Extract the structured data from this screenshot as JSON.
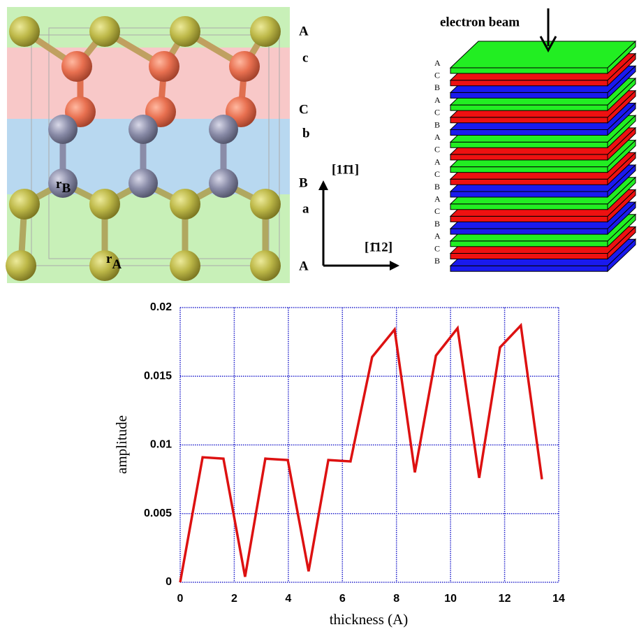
{
  "structure": {
    "layer_labels": [
      "A",
      "c",
      "C",
      "b",
      "B",
      "a",
      "A"
    ],
    "r_B": {
      "main": "r",
      "sub": "B"
    },
    "r_A": {
      "main": "r",
      "sub": "A"
    },
    "dir_up": "[11̄1]",
    "dir_right": "[1̄12]"
  },
  "stacking": {
    "beam_label": "electron beam",
    "layers": [
      {
        "label": "A",
        "color": "#22ee22"
      },
      {
        "label": "C",
        "color": "#ee1111"
      },
      {
        "label": "B",
        "color": "#1a1aee"
      },
      {
        "label": "A",
        "color": "#22ee22"
      },
      {
        "label": "C",
        "color": "#ee1111"
      },
      {
        "label": "B",
        "color": "#1a1aee"
      },
      {
        "label": "A",
        "color": "#22ee22"
      },
      {
        "label": "C",
        "color": "#ee1111"
      },
      {
        "label": "A",
        "color": "#22ee22"
      },
      {
        "label": "C",
        "color": "#ee1111"
      },
      {
        "label": "B",
        "color": "#1a1aee"
      },
      {
        "label": "A",
        "color": "#22ee22"
      },
      {
        "label": "C",
        "color": "#ee1111"
      },
      {
        "label": "B",
        "color": "#1a1aee"
      },
      {
        "label": "A",
        "color": "#22ee22"
      },
      {
        "label": "C",
        "color": "#ee1111"
      },
      {
        "label": "B",
        "color": "#1a1aee"
      }
    ]
  },
  "chart_data": {
    "type": "line",
    "x_label": "thickness (A)",
    "y_label": "amplitude",
    "x": [
      0,
      0.83,
      1.6,
      2.4,
      3.15,
      3.98,
      4.75,
      5.48,
      6.3,
      7.1,
      7.93,
      8.68,
      9.46,
      10.26,
      11.06,
      11.83,
      12.6,
      13.38
    ],
    "values": [
      0,
      0.0091,
      0.009,
      0.0004,
      0.009,
      0.0089,
      0.0008,
      0.0089,
      0.0088,
      0.0164,
      0.0184,
      0.008,
      0.0165,
      0.0185,
      0.0076,
      0.0171,
      0.0187,
      0.0075
    ],
    "color": "#dd1111",
    "xlim": [
      0,
      14
    ],
    "xticks": [
      0,
      2,
      4,
      6,
      8,
      10,
      12,
      14
    ],
    "ylim": [
      0,
      0.02
    ],
    "yticks": [
      0,
      0.005,
      0.01,
      0.015,
      0.02
    ],
    "grid": true,
    "grid_color": "#2222cc"
  }
}
